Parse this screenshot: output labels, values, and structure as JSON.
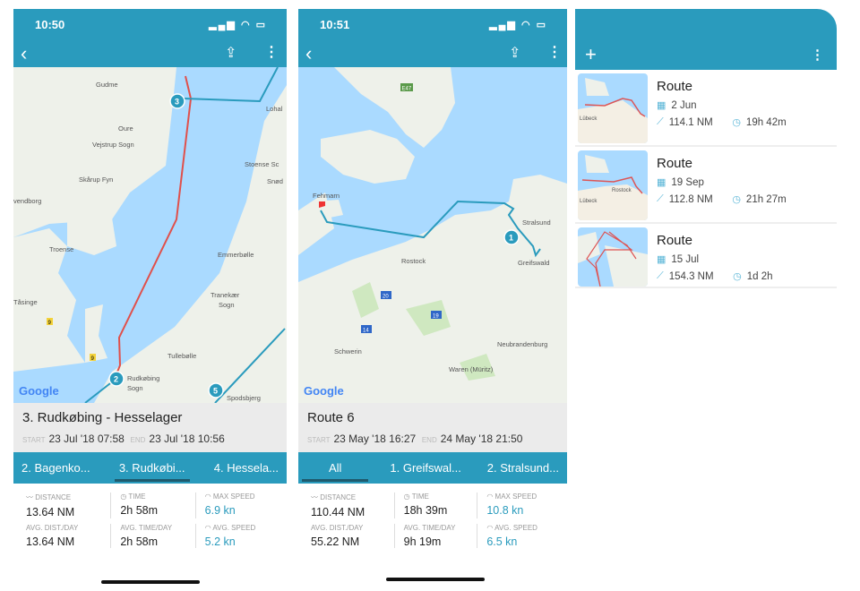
{
  "colors": {
    "accent": "#2a9bbd",
    "route_red": "#e0504b",
    "value_teal": "#2a9bbd"
  },
  "phone1": {
    "status": {
      "time": "10:50"
    },
    "nav": {
      "back_icon": "chevron-left-icon",
      "share_icon": "share-icon",
      "more_icon": "more-vertical-icon"
    },
    "map": {
      "labels": [
        "Gudme",
        "Oure",
        "Vejstrup Sogn",
        "Skårup Fyn",
        "vendborg",
        "Troense",
        "Tåsinge",
        "Lohal",
        "Stoense Sc",
        "Snød",
        "Emmerbølle",
        "Tranekær",
        "Sogn",
        "Tullebølle",
        "Rudkøbing",
        "Sogn",
        "Spodsbjerg"
      ],
      "markers": [
        "3",
        "2",
        "5"
      ],
      "road_badges": [
        "9",
        "9"
      ],
      "google": "Google"
    },
    "title": "3. Rudkøbing - Hesselager",
    "start_label": "START",
    "start": "23 Jul '18 07:58",
    "end_label": "END",
    "end": "23 Jul '18 10:56",
    "tabs": [
      {
        "label": "2. Bagenko..."
      },
      {
        "label": "3. Rudkøbi...",
        "active": true
      },
      {
        "label": "4. Hessela..."
      }
    ],
    "stats": [
      {
        "label": "DISTANCE",
        "value": "13.64 NM"
      },
      {
        "label": "TIME",
        "value": "2h 58m"
      },
      {
        "label": "MAX SPEED",
        "value": "6.9 kn"
      },
      {
        "label": "AVG. DIST./DAY",
        "value": "13.64 NM"
      },
      {
        "label": "AVG. TIME/DAY",
        "value": "2h 58m"
      },
      {
        "label": "AVG. SPEED",
        "value": "5.2 kn"
      }
    ]
  },
  "phone2": {
    "status": {
      "time": "10:51"
    },
    "map": {
      "labels": [
        "Fehmarn",
        "Stralsund",
        "Greifswald",
        "Rostock",
        "Schwerin",
        "Neubrandenburg",
        "Waren (Müritz)"
      ],
      "markers": [
        "1"
      ],
      "road_badges": [
        "E47",
        "20",
        "19",
        "14"
      ],
      "google": "Google"
    },
    "title": "Route 6",
    "start_label": "START",
    "start": "23 May '18 16:27",
    "end_label": "END",
    "end": "24 May '18 21:50",
    "tabs": [
      {
        "label": "All",
        "active": true
      },
      {
        "label": "1. Greifswal..."
      },
      {
        "label": "2. Stralsund..."
      }
    ],
    "stats": [
      {
        "label": "DISTANCE",
        "value": "110.44 NM"
      },
      {
        "label": "TIME",
        "value": "18h 39m"
      },
      {
        "label": "MAX SPEED",
        "value": "10.8 kn"
      },
      {
        "label": "AVG. DIST./DAY",
        "value": "55.22 NM"
      },
      {
        "label": "AVG. TIME/DAY",
        "value": "9h 19m"
      },
      {
        "label": "AVG. SPEED",
        "value": "6.5 kn"
      }
    ]
  },
  "phone3": {
    "add_icon": "plus-icon",
    "more_icon": "more-vertical-icon",
    "routes": [
      {
        "title": "Route",
        "date": "2 Jun",
        "distance": "114.1 NM",
        "duration": "19h 42m",
        "thumb_labels": [
          "Lübeck"
        ]
      },
      {
        "title": "Route",
        "date": "19 Sep",
        "distance": "112.8 NM",
        "duration": "21h 27m",
        "thumb_labels": [
          "Lübeck",
          "Rostock"
        ]
      },
      {
        "title": "Route",
        "date": "15 Jul",
        "distance": "154.3 NM",
        "duration": "1d 2h",
        "thumb_labels": []
      }
    ]
  }
}
